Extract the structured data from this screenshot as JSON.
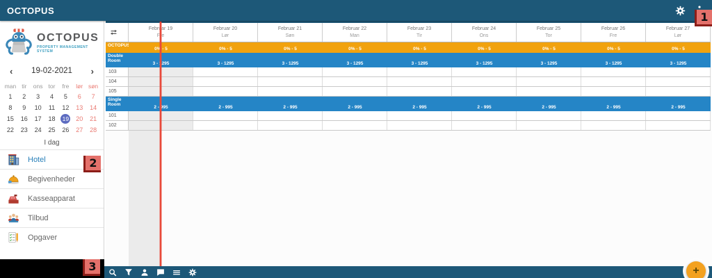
{
  "topbar": {
    "title": "OCTOPUS",
    "icons": [
      "settings-icon",
      "overflow-menu-icon"
    ]
  },
  "sidebar": {
    "logo_title": "OCTOPUS",
    "logo_tagline": "PROPERTY MANAGEMENT SYSTEM",
    "date_nav": {
      "prev": "‹",
      "value": "19-02-2021",
      "next": "›"
    },
    "calendar": {
      "day_headers": [
        "man",
        "tir",
        "ons",
        "tor",
        "fre",
        "lør",
        "søn"
      ],
      "weeks": [
        [
          1,
          2,
          3,
          4,
          5,
          6,
          7
        ],
        [
          8,
          9,
          10,
          11,
          12,
          13,
          14
        ],
        [
          15,
          16,
          17,
          18,
          19,
          20,
          21
        ],
        [
          22,
          23,
          24,
          25,
          26,
          27,
          28
        ]
      ],
      "selected_day": 19,
      "weekend_day_indexes": [
        5,
        6
      ]
    },
    "today_label": "I dag",
    "menu": [
      {
        "key": "hotel",
        "label": "Hotel",
        "icon": "hotel-icon",
        "active": true
      },
      {
        "key": "events",
        "label": "Begivenheder",
        "icon": "events-icon",
        "active": false
      },
      {
        "key": "cash-register",
        "label": "Kasseapparat",
        "icon": "cash-register-icon",
        "active": false
      },
      {
        "key": "offers",
        "label": "Tilbud",
        "icon": "offers-icon",
        "active": false
      },
      {
        "key": "tasks",
        "label": "Opgaver",
        "icon": "tasks-icon",
        "active": false
      }
    ]
  },
  "scheduler": {
    "corner_icon": "swap-horizontal-icon",
    "columns": [
      {
        "date": "Februar 19",
        "day": "Fre",
        "today": true
      },
      {
        "date": "Februar 20",
        "day": "Lør",
        "today": false
      },
      {
        "date": "Februar 21",
        "day": "Søn",
        "today": false
      },
      {
        "date": "Februar 22",
        "day": "Man",
        "today": false
      },
      {
        "date": "Februar 23",
        "day": "Tir",
        "today": false
      },
      {
        "date": "Februar 24",
        "day": "Ons",
        "today": false
      },
      {
        "date": "Februar 25",
        "day": "Tor",
        "today": false
      },
      {
        "date": "Februar 26",
        "day": "Fre",
        "today": false
      },
      {
        "date": "Februar 27",
        "day": "Lør",
        "today": false
      }
    ],
    "rows": [
      {
        "type": "summary",
        "name": "OCTOPUS",
        "values": [
          "0% - 5",
          "0% - 5",
          "0% - 5",
          "0% - 5",
          "0% - 5",
          "0% - 5",
          "0% - 5",
          "0% - 5",
          "0% - 5"
        ],
        "rooms": []
      },
      {
        "type": "group",
        "name": "Double Room",
        "values": [
          "3 - 1295",
          "3 - 1295",
          "3 - 1295",
          "3 - 1295",
          "3 - 1295",
          "3 - 1295",
          "3 - 1295",
          "3 - 1295",
          "3 - 1295"
        ],
        "rooms": [
          "103",
          "104",
          "105"
        ]
      },
      {
        "type": "group",
        "name": "Single Room",
        "values": [
          "2 - 995",
          "2 - 995",
          "2 - 995",
          "2 - 995",
          "2 - 995",
          "2 - 995",
          "2 - 995",
          "2 - 995",
          "2 - 995"
        ],
        "rooms": [
          "101",
          "102"
        ]
      }
    ]
  },
  "bottombar": {
    "icons": [
      "search-icon",
      "filter-icon",
      "person-icon",
      "chat-icon",
      "list-icon",
      "settings-icon"
    ],
    "fab_label": "+"
  },
  "annotations": [
    {
      "label": "1"
    },
    {
      "label": "2"
    },
    {
      "label": "3"
    }
  ],
  "colors": {
    "bar_blue": "#1d5878",
    "summary_orange": "#f1a20e",
    "group_blue": "#2585c6",
    "fab_orange": "#f3a120",
    "now_line_red": "#e84c3d",
    "annotation_red": "#e4716b",
    "selected_day_blue": "#5c6bc0",
    "active_menu_blue": "#2980b9",
    "weekend_red": "#ea7a72"
  }
}
